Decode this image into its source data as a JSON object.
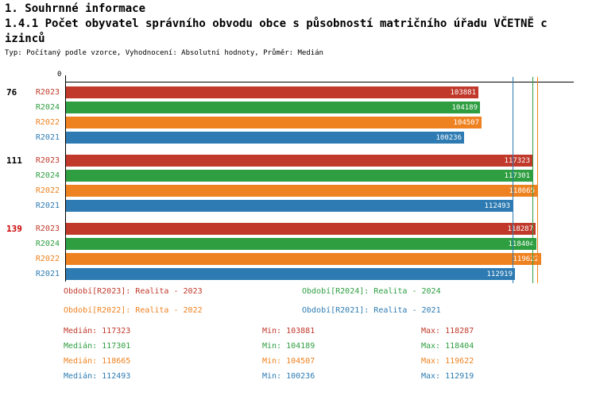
{
  "header": {
    "title": "1. Souhrnné informace",
    "subtitle_line1": "1.4.1 Počet obyvatel správního obvodu obce s působností matričního úřadu VČETNĚ c",
    "subtitle_line2": "izinců",
    "meta": "Typ: Počítaný podle vzorce, Vyhodnocení: Absolutní hodnoty, Průměr: Medián"
  },
  "chart_data": {
    "type": "bar",
    "orientation": "horizontal",
    "title": "1.4.1 Počet obyvatel správního obvodu obce s působností matričního úřadu VČETNĚ cizinců",
    "axis": {
      "zero_label": "0"
    },
    "series": [
      {
        "id": "R2023",
        "name": "Realita - 2023",
        "color": "#c0392b"
      },
      {
        "id": "R2024",
        "name": "Realita - 2024",
        "color": "#2e9e41"
      },
      {
        "id": "R2022",
        "name": "Realita - 2022",
        "color": "#ef8220"
      },
      {
        "id": "R2021",
        "name": "Realita - 2021",
        "color": "#2d7bb2"
      }
    ],
    "groups": [
      {
        "label": "76",
        "label_color": "#000000",
        "values": {
          "R2023": 103881,
          "R2024": 104189,
          "R2022": 104507,
          "R2021": 100236
        }
      },
      {
        "label": "111",
        "label_color": "#000000",
        "values": {
          "R2023": 117323,
          "R2024": 117301,
          "R2022": 118665,
          "R2021": 112493
        }
      },
      {
        "label": "139",
        "label_color": "#cc0000",
        "values": {
          "R2023": 118287,
          "R2024": 118404,
          "R2022": 119622,
          "R2021": 112919
        }
      }
    ],
    "median_lines": {
      "R2023": 117323,
      "R2024": 117301,
      "R2022": 118665,
      "R2021": 112493
    }
  },
  "legend": [
    {
      "series": "R2023",
      "text": "Období[R2023]: Realita - 2023",
      "color": "#c0392b"
    },
    {
      "series": "R2024",
      "text": "Období[R2024]: Realita - 2024",
      "color": "#2e9e41"
    },
    {
      "series": "R2022",
      "text": "Období[R2022]: Realita - 2022",
      "color": "#ef8220"
    },
    {
      "series": "R2021",
      "text": "Období[R2021]: Realita - 2021",
      "color": "#2d7bb2"
    }
  ],
  "stats": {
    "rows": [
      {
        "series": "R2023",
        "color": "#c0392b",
        "median": "Medián: 117323",
        "min": "Min: 103881",
        "max": "Max: 118287"
      },
      {
        "series": "R2024",
        "color": "#2e9e41",
        "median": "Medián: 117301",
        "min": "Min: 104189",
        "max": "Max: 118404"
      },
      {
        "series": "R2022",
        "color": "#ef8220",
        "median": "Medián: 118665",
        "min": "Min: 104507",
        "max": "Max: 119622"
      },
      {
        "series": "R2021",
        "color": "#2d7bb2",
        "median": "Medián: 112493",
        "min": "Min: 100236",
        "max": "Max: 112919"
      }
    ]
  }
}
